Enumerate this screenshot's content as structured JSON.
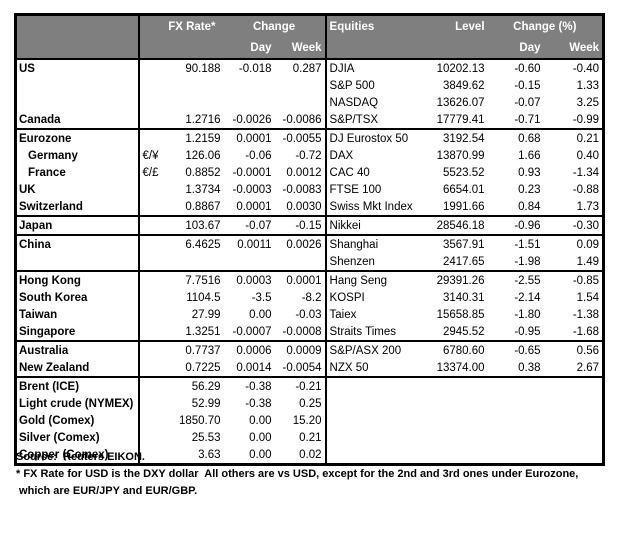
{
  "header": {
    "fx": {
      "rate": "FX Rate*",
      "change": "Change",
      "day": "Day",
      "week": "Week"
    },
    "equities": {
      "name": "Equities",
      "level": "Level",
      "change": "Change (%)",
      "day": "Day",
      "week": "Week"
    }
  },
  "rows": [
    {
      "fx": {
        "name": "US",
        "pair": "",
        "rate": "90.188",
        "day": "-0.018",
        "week": "0.287"
      },
      "eq": {
        "name": "DJIA",
        "level": "10202.13",
        "day": "-0.60",
        "week": "-0.40"
      },
      "group_end": false
    },
    {
      "fx": {
        "name": "",
        "pair": "",
        "rate": "",
        "day": "",
        "week": ""
      },
      "eq": {
        "name": "S&P 500",
        "level": "3849.62",
        "day": "-0.15",
        "week": "1.33"
      },
      "group_end": false
    },
    {
      "fx": {
        "name": "",
        "pair": "",
        "rate": "",
        "day": "",
        "week": ""
      },
      "eq": {
        "name": "NASDAQ",
        "level": "13626.07",
        "day": "-0.07",
        "week": "3.25"
      },
      "group_end": false
    },
    {
      "fx": {
        "name": "Canada",
        "pair": "",
        "rate": "1.2716",
        "day": "-0.0026",
        "week": "-0.0086"
      },
      "eq": {
        "name": "S&P/TSX",
        "level": "17779.41",
        "day": "-0.71",
        "week": "-0.99"
      },
      "group_end": true
    },
    {
      "fx": {
        "name": "Eurozone",
        "pair": "",
        "rate": "1.2159",
        "day": "0.0001",
        "week": "-0.0055"
      },
      "eq": {
        "name": "DJ Eurostox 50",
        "level": "3192.54",
        "day": "0.68",
        "week": "0.21"
      },
      "group_end": false
    },
    {
      "fx": {
        "name": "Germany",
        "indent": true,
        "pair": "€/¥",
        "rate": "126.06",
        "day": "-0.06",
        "week": "-0.72"
      },
      "eq": {
        "name": "DAX",
        "level": "13870.99",
        "day": "1.66",
        "week": "0.40"
      },
      "group_end": false
    },
    {
      "fx": {
        "name": "France",
        "indent": true,
        "pair": "€/£",
        "rate": "0.8852",
        "day": "-0.0001",
        "week": "0.0012"
      },
      "eq": {
        "name": "CAC 40",
        "level": "5523.52",
        "day": "0.93",
        "week": "-1.34"
      },
      "group_end": false
    },
    {
      "fx": {
        "name": "UK",
        "pair": "",
        "rate": "1.3734",
        "day": "-0.0003",
        "week": "-0.0083"
      },
      "eq": {
        "name": "FTSE 100",
        "level": "6654.01",
        "day": "0.23",
        "week": "-0.88"
      },
      "group_end": false
    },
    {
      "fx": {
        "name": "Switzerland",
        "pair": "",
        "rate": "0.8867",
        "day": "0.0001",
        "week": "0.0030"
      },
      "eq": {
        "name": "Swiss Mkt Index",
        "level": "1991.66",
        "day": "0.84",
        "week": "1.73"
      },
      "group_end": true
    },
    {
      "fx": {
        "name": "Japan",
        "pair": "",
        "rate": "103.67",
        "day": "-0.07",
        "week": "-0.15"
      },
      "eq": {
        "name": "Nikkei",
        "level": "28546.18",
        "day": "-0.96",
        "week": "-0.30"
      },
      "group_end": true
    },
    {
      "fx": {
        "name": "China",
        "pair": "",
        "rate": "6.4625",
        "day": "0.0011",
        "week": "0.0026"
      },
      "eq": {
        "name": "Shanghai",
        "level": "3567.91",
        "day": "-1.51",
        "week": "0.09"
      },
      "group_end": false
    },
    {
      "fx": {
        "name": "",
        "pair": "",
        "rate": "",
        "day": "",
        "week": ""
      },
      "eq": {
        "name": "Shenzen",
        "level": "2417.65",
        "day": "-1.98",
        "week": "1.49"
      },
      "group_end": true
    },
    {
      "fx": {
        "name": "Hong Kong",
        "pair": "",
        "rate": "7.7516",
        "day": "0.0003",
        "week": "0.0001"
      },
      "eq": {
        "name": "Hang Seng",
        "level": "29391.26",
        "day": "-2.55",
        "week": "-0.85"
      },
      "group_end": false
    },
    {
      "fx": {
        "name": "South Korea",
        "pair": "",
        "rate": "1104.5",
        "day": "-3.5",
        "week": "-8.2"
      },
      "eq": {
        "name": "KOSPI",
        "level": "3140.31",
        "day": "-2.14",
        "week": "1.54"
      },
      "group_end": false
    },
    {
      "fx": {
        "name": "Taiwan",
        "pair": "",
        "rate": "27.99",
        "day": "0.00",
        "week": "-0.03"
      },
      "eq": {
        "name": "Taiex",
        "level": "15658.85",
        "day": "-1.80",
        "week": "-1.38"
      },
      "group_end": false
    },
    {
      "fx": {
        "name": "Singapore",
        "pair": "",
        "rate": "1.3251",
        "day": "-0.0007",
        "week": "-0.0008"
      },
      "eq": {
        "name": "Straits Times",
        "level": "2945.52",
        "day": "-0.95",
        "week": "-1.68"
      },
      "group_end": true
    },
    {
      "fx": {
        "name": "Australia",
        "pair": "",
        "rate": "0.7737",
        "day": "0.0006",
        "week": "0.0009"
      },
      "eq": {
        "name": "S&P/ASX  200",
        "level": "6780.60",
        "day": "-0.65",
        "week": "0.56"
      },
      "group_end": false
    },
    {
      "fx": {
        "name": "New Zealand",
        "pair": "",
        "rate": "0.7225",
        "day": "0.0014",
        "week": "-0.0054"
      },
      "eq": {
        "name": "NZX 50",
        "level": "13374.00",
        "day": "0.38",
        "week": "2.67"
      },
      "group_end": true
    },
    {
      "fx": {
        "name": "Brent (ICE)",
        "pair": "",
        "rate": "56.29",
        "day": "-0.38",
        "week": "-0.21"
      },
      "eq": {
        "name": "",
        "level": "",
        "day": "",
        "week": ""
      },
      "group_end": false
    },
    {
      "fx": {
        "name": "Light crude (NYMEX)",
        "pair": "",
        "rate": "52.99",
        "day": "-0.38",
        "week": "0.25"
      },
      "eq": {
        "name": "",
        "level": "",
        "day": "",
        "week": ""
      },
      "group_end": false
    },
    {
      "fx": {
        "name": "Gold (Comex)",
        "pair": "",
        "rate": "1850.70",
        "day": "0.00",
        "week": "15.20"
      },
      "eq": {
        "name": "",
        "level": "",
        "day": "",
        "week": ""
      },
      "group_end": false
    },
    {
      "fx": {
        "name": "Silver (Comex)",
        "pair": "",
        "rate": "25.53",
        "day": "0.00",
        "week": "0.21"
      },
      "eq": {
        "name": "",
        "level": "",
        "day": "",
        "week": ""
      },
      "group_end": false
    },
    {
      "fx": {
        "name": "Copper (Comex)",
        "pair": "",
        "rate": "3.63",
        "day": "0.00",
        "week": "0.02"
      },
      "eq": {
        "name": "",
        "level": "",
        "day": "",
        "week": ""
      },
      "group_end": false
    }
  ],
  "footer": {
    "source": "Source:  Reuters EIKON.",
    "note1": "* FX Rate for USD is the DXY dollar  All others are vs USD, except for the 2nd and 3rd ones under Eurozone,",
    "note2": " which are EUR/JPY and EUR/GBP."
  },
  "colors": {
    "header_bg": "#7f7f7f",
    "header_text": "#ffffff",
    "border": "#000000"
  }
}
